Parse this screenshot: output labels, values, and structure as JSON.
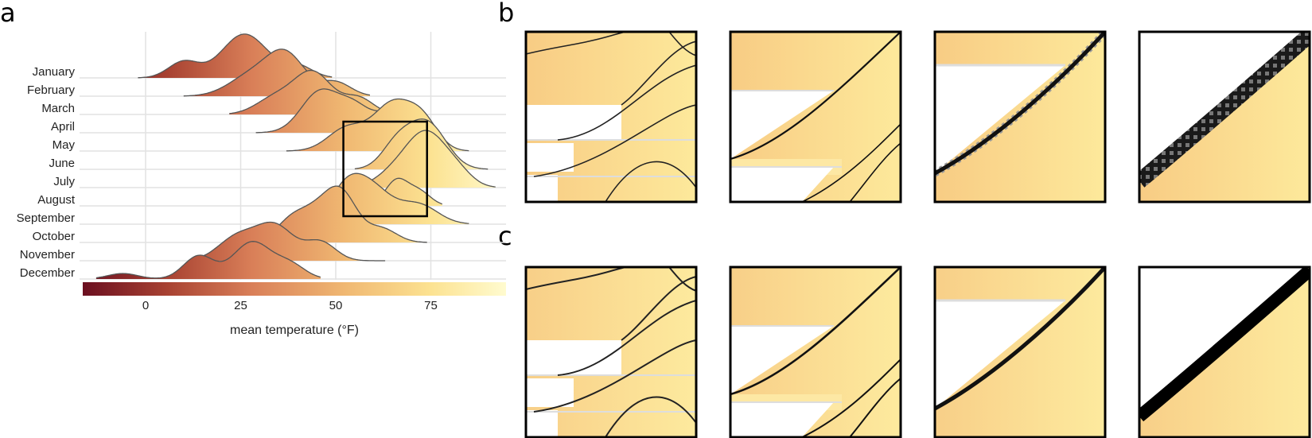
{
  "panels": {
    "a": "a",
    "b": "b",
    "c": "c"
  },
  "chart_data": {
    "type": "ridgeline",
    "categories": [
      "January",
      "February",
      "March",
      "April",
      "May",
      "June",
      "July",
      "August",
      "September",
      "October",
      "November",
      "December"
    ],
    "xlabel": "mean temperature (°F)",
    "xticks": [
      "0",
      "25",
      "50",
      "75"
    ],
    "xtick_values": [
      0,
      25,
      50,
      75
    ],
    "xlim": [
      -17,
      95
    ],
    "grid": true,
    "legend": "colorbar-bottom",
    "fill_colormap": [
      "#6b0f20",
      "#a84232",
      "#d97f58",
      "#f0b872",
      "#fce291",
      "#fffbcf"
    ],
    "series": [
      {
        "month": "January",
        "range": [
          -2,
          49
        ],
        "peaks": [
          [
            10,
            0.35,
            4
          ],
          [
            26,
            0.95,
            6
          ],
          [
            40,
            0.25,
            4
          ]
        ]
      },
      {
        "month": "February",
        "range": [
          10,
          59
        ],
        "peaks": [
          [
            28,
            0.45,
            6
          ],
          [
            37,
            0.85,
            5
          ],
          [
            50,
            0.3,
            4
          ]
        ]
      },
      {
        "month": "March",
        "range": [
          22,
          64
        ],
        "peaks": [
          [
            34,
            0.35,
            5
          ],
          [
            44,
            0.9,
            5
          ],
          [
            56,
            0.35,
            4
          ]
        ]
      },
      {
        "month": "April",
        "range": [
          29,
          72
        ],
        "peaks": [
          [
            46,
            0.9,
            5
          ],
          [
            55,
            0.5,
            4
          ],
          [
            64,
            0.4,
            4
          ]
        ]
      },
      {
        "month": "May",
        "range": [
          37,
          85
        ],
        "peaks": [
          [
            53,
            0.5,
            5
          ],
          [
            65,
            1.0,
            5
          ],
          [
            73,
            0.6,
            4
          ]
        ]
      },
      {
        "month": "June",
        "range": [
          55,
          90
        ],
        "peaks": [
          [
            66,
            0.5,
            4
          ],
          [
            74,
            1.0,
            5
          ]
        ]
      },
      {
        "month": "July",
        "range": [
          53,
          92
        ],
        "peaks": [
          [
            66,
            0.35,
            5
          ],
          [
            74,
            1.1,
            5
          ],
          [
            82,
            0.3,
            4
          ]
        ]
      },
      {
        "month": "August",
        "range": [
          59,
          78
        ],
        "peaks": [
          [
            66,
            0.55,
            3
          ],
          [
            72,
            0.3,
            3
          ]
        ]
      },
      {
        "month": "September",
        "range": [
          41,
          85
        ],
        "peaks": [
          [
            52,
            0.4,
            4
          ],
          [
            58,
            0.9,
            6
          ],
          [
            72,
            0.4,
            5
          ]
        ]
      },
      {
        "month": "October",
        "range": [
          30,
          74
        ],
        "peaks": [
          [
            38,
            0.4,
            4
          ],
          [
            46,
            0.7,
            5
          ],
          [
            52,
            0.8,
            4
          ],
          [
            62,
            0.3,
            4
          ]
        ]
      },
      {
        "month": "November",
        "range": [
          14,
          63
        ],
        "peaks": [
          [
            24,
            0.5,
            5
          ],
          [
            34,
            0.75,
            5
          ],
          [
            46,
            0.4,
            4
          ]
        ]
      },
      {
        "month": "December",
        "range": [
          -13,
          46
        ],
        "peaks": [
          [
            -6,
            0.12,
            4
          ],
          [
            14,
            0.5,
            4
          ],
          [
            28,
            0.8,
            5
          ],
          [
            38,
            0.3,
            4
          ]
        ]
      }
    ],
    "zoom_box": {
      "x": [
        52,
        74
      ],
      "months": [
        "March",
        "August"
      ]
    }
  }
}
